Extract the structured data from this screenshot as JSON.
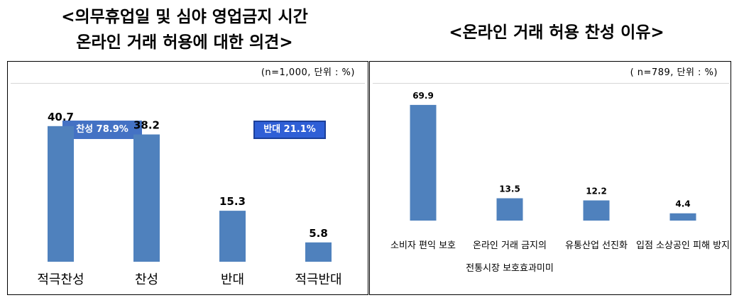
{
  "left": {
    "title_line1": "<의무휴업일 및 심야 영업금지 시간",
    "title_line2": "온라인 거래 허용에 대한 의견>",
    "note": "(n=1,000,  단위 : %)",
    "badge_favor": "찬성 78.9%",
    "badge_oppose": "반대 21.1%"
  },
  "right": {
    "title": "<온라인 거래 허용 찬성 이유>",
    "note": "( n=789,  단위 : %)"
  },
  "colors": {
    "bar": "#4f81bd",
    "badge_favor": "#4472c4",
    "badge_oppose": "#2f5fd6"
  },
  "chart_data": [
    {
      "type": "bar",
      "categories": [
        "적극찬성",
        "찬성",
        "반대",
        "적극반대"
      ],
      "values": [
        40.7,
        38.2,
        15.3,
        5.8
      ],
      "value_labels": [
        "40.7",
        "38.2",
        "15.3",
        "5.8"
      ],
      "ylim": [
        0,
        45
      ],
      "grid": false
    },
    {
      "type": "bar",
      "categories": [
        [
          "소비자 편익 보호"
        ],
        [
          "온라인 거래 금지의",
          "전통시장 보호효과미미"
        ],
        [
          "유통산업 선진화"
        ],
        [
          "입점 소상공인 피해 방지"
        ]
      ],
      "values": [
        69.9,
        13.5,
        12.2,
        4.4
      ],
      "value_labels": [
        "69.9",
        "13.5",
        "12.2",
        "4.4"
      ],
      "ylim": [
        0,
        75
      ],
      "grid": false
    }
  ]
}
